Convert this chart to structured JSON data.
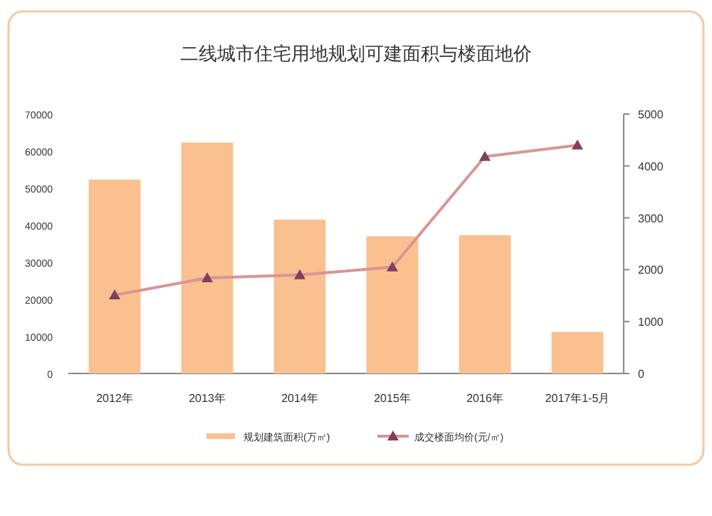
{
  "chart_data": {
    "type": "bar",
    "title": "二线城市住宅用地规划可建面积与楼面地价",
    "categories": [
      "2012年",
      "2013年",
      "2014年",
      "2015年",
      "2016年",
      "2017年1-5月"
    ],
    "series": [
      {
        "name": "规划建筑面积(万㎡)",
        "color": "#fac090",
        "values": [
          52300,
          62300,
          41500,
          37000,
          37300,
          11200
        ]
      },
      {
        "name": "成交楼面均价(元/㎡)",
        "type": "line",
        "axis": "y2",
        "color": "#d99594",
        "marker": "triangle",
        "values": [
          1510,
          1840,
          1900,
          2050,
          4180,
          4400
        ]
      }
    ],
    "ylim": [
      0,
      70000
    ],
    "yticks": [
      0,
      10000,
      20000,
      30000,
      40000,
      50000,
      60000,
      70000
    ],
    "y2lim": [
      0,
      5000
    ],
    "y2ticks": [
      0,
      1000,
      2000,
      3000,
      4000,
      5000
    ],
    "grid": false,
    "legend": "bottom"
  }
}
